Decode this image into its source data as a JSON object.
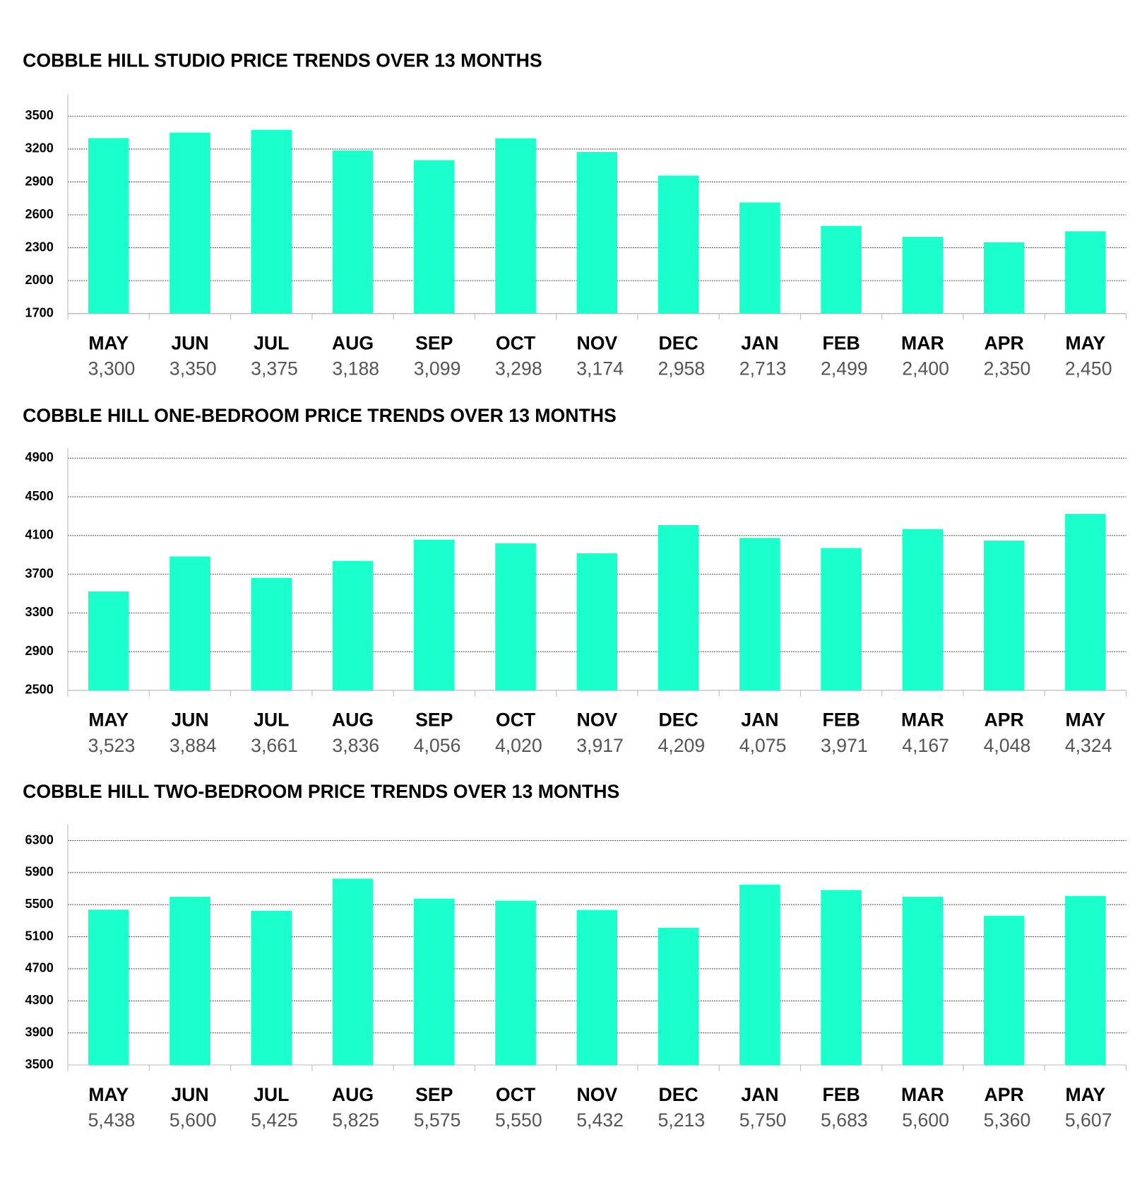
{
  "chart_data": [
    {
      "type": "bar",
      "title": "COBBLE HILL STUDIO PRICE TRENDS OVER 13 MONTHS",
      "categories": [
        "MAY",
        "JUN",
        "JUL",
        "AUG",
        "SEP",
        "OCT",
        "NOV",
        "DEC",
        "JAN",
        "FEB",
        "MAR",
        "APR",
        "MAY"
      ],
      "values": [
        3300,
        3350,
        3375,
        3188,
        3099,
        3298,
        3174,
        2958,
        2713,
        2499,
        2400,
        2350,
        2450
      ],
      "value_labels": [
        "3,300",
        "3,350",
        "3,375",
        "3,188",
        "3,099",
        "3,298",
        "3,174",
        "2,958",
        "2,713",
        "2,499",
        "2,400",
        "2,350",
        "2,450"
      ],
      "color": "#1affcc",
      "ylim": [
        1700,
        3700
      ],
      "yticks": [
        1700,
        2000,
        2300,
        2600,
        2900,
        3200,
        3500
      ],
      "grid": true
    },
    {
      "type": "bar",
      "title": "COBBLE HILL ONE-BEDROOM PRICE TRENDS OVER 13 MONTHS",
      "categories": [
        "MAY",
        "JUN",
        "JUL",
        "AUG",
        "SEP",
        "OCT",
        "NOV",
        "DEC",
        "JAN",
        "FEB",
        "MAR",
        "APR",
        "MAY"
      ],
      "values": [
        3523,
        3884,
        3661,
        3836,
        4056,
        4020,
        3917,
        4209,
        4075,
        3971,
        4167,
        4048,
        4324
      ],
      "value_labels": [
        "3,523",
        "3,884",
        "3,661",
        "3,836",
        "4,056",
        "4,020",
        "3,917",
        "4,209",
        "4,075",
        "3,971",
        "4,167",
        "4,048",
        "4,324"
      ],
      "color": "#1affcc",
      "ylim": [
        2500,
        5000
      ],
      "yticks": [
        2500,
        2900,
        3300,
        3700,
        4100,
        4500,
        4900
      ],
      "grid": true
    },
    {
      "type": "bar",
      "title": "COBBLE HILL TWO-BEDROOM PRICE TRENDS OVER 13 MONTHS",
      "categories": [
        "MAY",
        "JUN",
        "JUL",
        "AUG",
        "SEP",
        "OCT",
        "NOV",
        "DEC",
        "JAN",
        "FEB",
        "MAR",
        "APR",
        "MAY"
      ],
      "values": [
        5438,
        5600,
        5425,
        5825,
        5575,
        5550,
        5432,
        5213,
        5750,
        5683,
        5600,
        5360,
        5607
      ],
      "value_labels": [
        "5,438",
        "5,600",
        "5,425",
        "5,825",
        "5,575",
        "5,550",
        "5,432",
        "5,213",
        "5,750",
        "5,683",
        "5,600",
        "5,360",
        "5,607"
      ],
      "color": "#1affcc",
      "ylim": [
        3500,
        6500
      ],
      "yticks": [
        3500,
        3900,
        4300,
        4700,
        5100,
        5500,
        5900,
        6300
      ],
      "grid": true
    }
  ]
}
